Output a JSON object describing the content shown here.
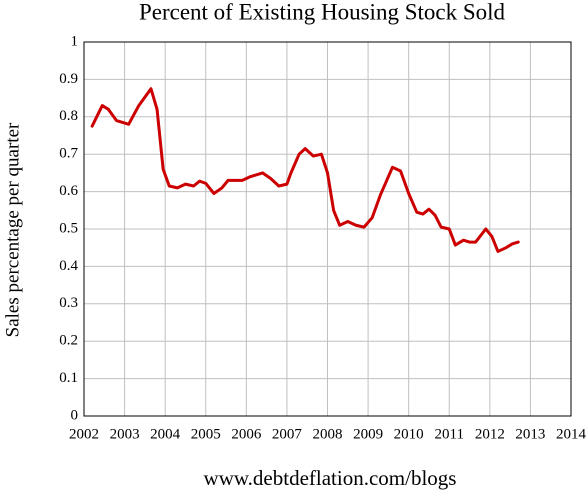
{
  "chart_data": {
    "type": "line",
    "title": "Percent of Existing Housing Stock Sold",
    "y_label": "Sales percentage per quarter",
    "footer": "www.debtdeflation.com/blogs",
    "grid": true,
    "xlim": [
      2002,
      2014
    ],
    "xticks": [
      2002,
      2003,
      2004,
      2005,
      2006,
      2007,
      2008,
      2009,
      2010,
      2011,
      2012,
      2013,
      2014
    ],
    "ylim": [
      0,
      1
    ],
    "yticks": [
      0,
      0.1,
      0.2,
      0.3,
      0.4,
      0.5,
      0.6,
      0.7,
      0.8,
      0.9,
      1
    ],
    "x": [
      2002.2,
      2002.45,
      2002.6,
      2002.8,
      2003.1,
      2003.35,
      2003.65,
      2003.8,
      2003.95,
      2004.1,
      2004.3,
      2004.5,
      2004.7,
      2004.85,
      2005.0,
      2005.2,
      2005.4,
      2005.55,
      2005.9,
      2006.1,
      2006.4,
      2006.6,
      2006.8,
      2007.0,
      2007.1,
      2007.3,
      2007.45,
      2007.65,
      2007.85,
      2008.0,
      2008.15,
      2008.3,
      2008.5,
      2008.7,
      2008.9,
      2009.1,
      2009.3,
      2009.6,
      2009.8,
      2010.0,
      2010.2,
      2010.35,
      2010.5,
      2010.65,
      2010.8,
      2011.0,
      2011.15,
      2011.35,
      2011.5,
      2011.65,
      2011.9,
      2012.05,
      2012.2,
      2012.4,
      2012.55,
      2012.7
    ],
    "series": [
      {
        "color": "#cc0000",
        "values": [
          0.775,
          0.83,
          0.82,
          0.79,
          0.78,
          0.83,
          0.875,
          0.82,
          0.66,
          0.615,
          0.61,
          0.62,
          0.615,
          0.628,
          0.622,
          0.595,
          0.61,
          0.63,
          0.63,
          0.64,
          0.65,
          0.635,
          0.615,
          0.62,
          0.65,
          0.7,
          0.715,
          0.695,
          0.7,
          0.65,
          0.55,
          0.51,
          0.52,
          0.51,
          0.505,
          0.53,
          0.59,
          0.665,
          0.655,
          0.595,
          0.545,
          0.54,
          0.553,
          0.537,
          0.505,
          0.5,
          0.457,
          0.47,
          0.465,
          0.465,
          0.5,
          0.48,
          0.44,
          0.45,
          0.46,
          0.465
        ]
      }
    ]
  }
}
